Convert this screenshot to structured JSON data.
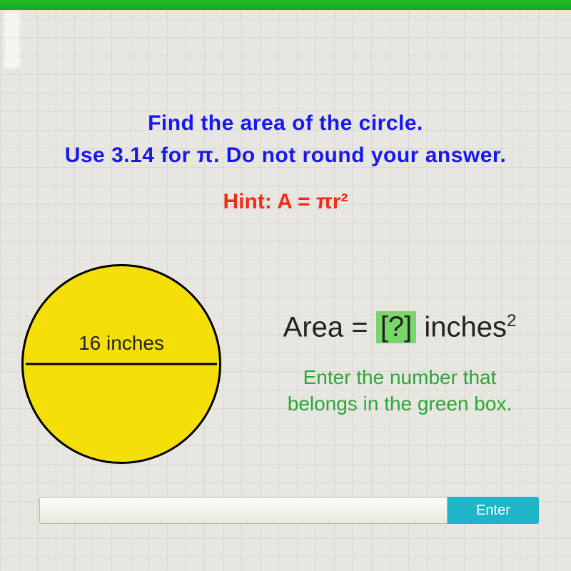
{
  "colors": {
    "top_bar": "#18a820",
    "background": "#e8e6e0",
    "grid": "#b4b2ac",
    "prompt_text": "#1818ee",
    "hint_text": "#ef2b1c",
    "circle_fill": "#f5df08",
    "circle_stroke": "#000000",
    "body_text": "#222222",
    "placeholder_bg": "#78d66b",
    "instruction_text": "#2aa63a",
    "button_bg": "#20b4c9",
    "button_text": "#ffffff"
  },
  "prompt": {
    "line1": "Find the area of the circle.",
    "line2": "Use 3.14 for π. Do not round your answer."
  },
  "hint": "Hint:  A = πr²",
  "circle": {
    "diameter_label": "16 inches",
    "diameter_value": 16,
    "diameter_units": "inches"
  },
  "area": {
    "prefix": "Area = ",
    "placeholder": "[?]",
    "suffix": " inches",
    "exponent": "2"
  },
  "sub_instruction": {
    "line1": "Enter the number that",
    "line2": "belongs in the green box."
  },
  "input": {
    "value": "",
    "placeholder": ""
  },
  "button": {
    "label": "Enter"
  }
}
